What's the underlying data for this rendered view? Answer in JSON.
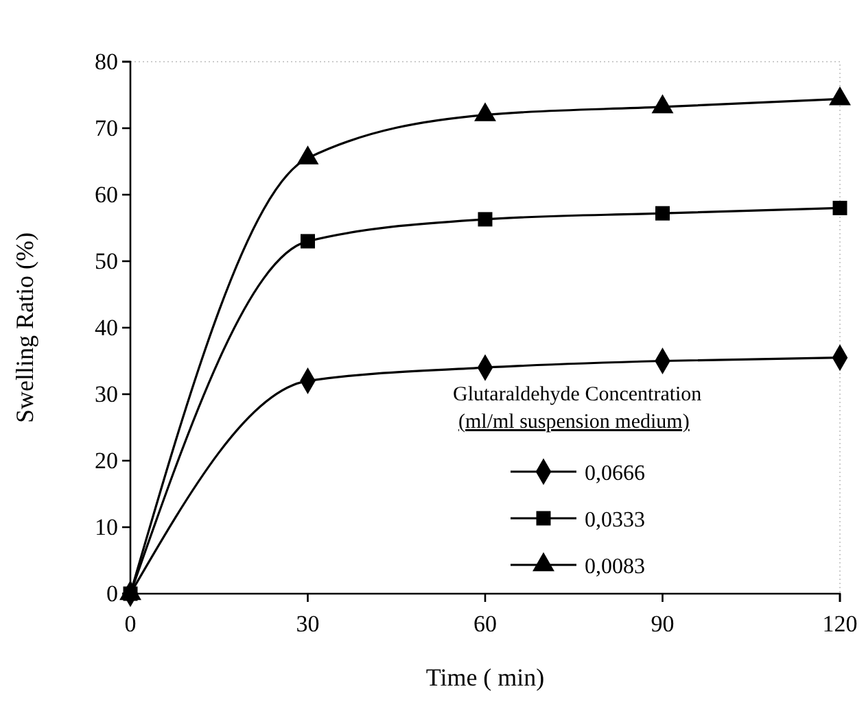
{
  "chart_data": {
    "type": "line",
    "xlabel": "Time ( min)",
    "ylabel": "Swelling Ratio (%)",
    "legend_title": "Glutaraldehyde Concentration (ml/ml suspension medium)",
    "x": [
      0,
      30,
      60,
      90,
      120
    ],
    "xlim": [
      0,
      120
    ],
    "xticks": [
      0,
      30,
      60,
      90,
      120
    ],
    "ylim": [
      0,
      80
    ],
    "yticks": [
      0,
      10,
      20,
      30,
      40,
      50,
      60,
      70,
      80
    ],
    "grid": false,
    "legend": "bottom right",
    "line_style": "solid",
    "series": [
      {
        "name": "0,0666",
        "color": "#000000",
        "marker": "diamond",
        "values": [
          0,
          32,
          34,
          35,
          35.5
        ]
      },
      {
        "name": "0,0333",
        "color": "#000000",
        "marker": "square",
        "values": [
          0,
          53,
          56.3,
          57.2,
          58
        ]
      },
      {
        "name": "0,0083",
        "color": "#000000",
        "marker": "triangle",
        "values": [
          0,
          65.5,
          72,
          73.2,
          74.4
        ]
      }
    ]
  }
}
